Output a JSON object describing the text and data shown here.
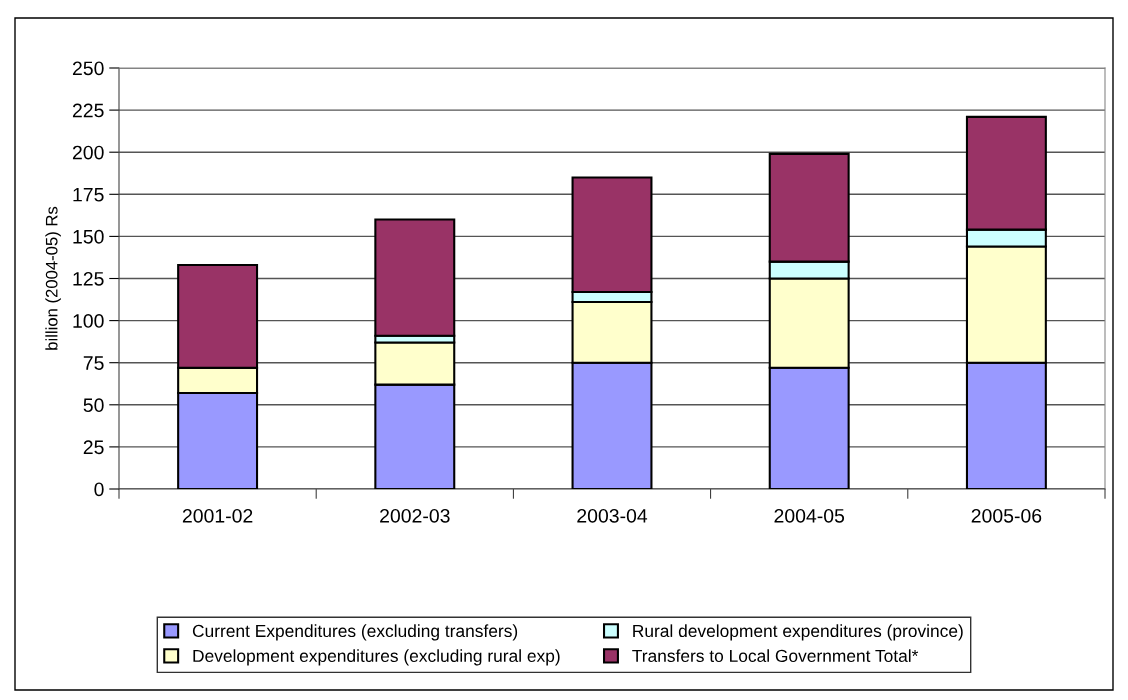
{
  "chart_data": {
    "type": "bar",
    "stacked": true,
    "ylabel": "billion (2004-05) Rs",
    "categories": [
      "2001-02",
      "2002-03",
      "2003-04",
      "2004-05",
      "2005-06"
    ],
    "series": [
      {
        "name": "Current Expenditures (excluding transfers)",
        "color": "#9999ff",
        "values": [
          57,
          62,
          75,
          72,
          75
        ]
      },
      {
        "name": "Development expenditures (excluding rural exp)",
        "color": "#ffffcc",
        "values": [
          15,
          25,
          36,
          53,
          69
        ]
      },
      {
        "name": "Rural development expenditures (province)",
        "color": "#ccffff",
        "values": [
          0,
          4,
          6,
          10,
          10
        ]
      },
      {
        "name": "Transfers to Local Government Total*",
        "color": "#993366",
        "values": [
          61,
          69,
          68,
          64,
          67
        ]
      }
    ],
    "ylim": [
      0,
      250
    ],
    "yticks": [
      0,
      25,
      50,
      75,
      100,
      125,
      150,
      175,
      200,
      225,
      250
    ],
    "grid": "y",
    "legend": "bottom"
  }
}
